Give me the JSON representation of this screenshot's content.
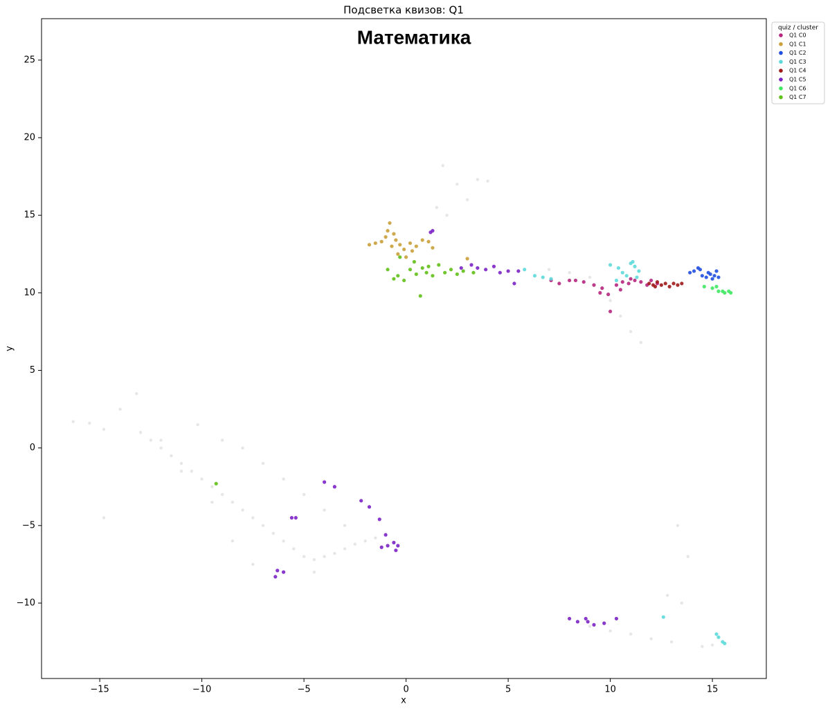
{
  "chart_data": {
    "type": "scatter",
    "title": "Подсветка квизов: Q1",
    "annotation": "Математика",
    "x_label": "x",
    "y_label": "y",
    "legend_title": "quiz / cluster",
    "legend_position": "upper right outside",
    "xlim": [
      -17.85,
      17.64
    ],
    "ylim": [
      -14.86,
      27.67
    ],
    "xticks": [
      {
        "value": -15,
        "label": "−15"
      },
      {
        "value": -10,
        "label": "−10"
      },
      {
        "value": -5,
        "label": "−5"
      },
      0,
      5,
      10,
      15
    ],
    "yticks": [
      {
        "value": -10,
        "label": "−10"
      },
      {
        "value": -5,
        "label": "−5"
      },
      0,
      5,
      10,
      15,
      20,
      25
    ],
    "series": [
      {
        "color": "#dcdcdc",
        "x": [
          -16.3,
          -15.5,
          -14.8,
          -14.0,
          -13.2,
          -13.0,
          -12.5,
          -12.0,
          -11.5,
          -11.0,
          -10.5,
          -10.0,
          -9.5,
          -9.0,
          -8.5,
          -8.0,
          -7.5,
          -7.0,
          -6.5,
          -6.0,
          -5.5,
          -5.0,
          -4.5,
          -4.0,
          -3.5,
          -3.0,
          -2.5,
          -2.0,
          -1.5,
          -10.2,
          -9.0,
          -8.0,
          -7.0,
          -6.0,
          -5.0,
          -4.0,
          -3.0,
          -11.0,
          -9.5,
          -8.5,
          -7.5,
          -12.0,
          -14.8,
          -4.5,
          1.8,
          2.5,
          3.0,
          3.5,
          4.0,
          2.0,
          1.5,
          7.0,
          8.0,
          9.0,
          10.0,
          10.5,
          11.0,
          11.5,
          9.0,
          10.0,
          11.0,
          12.0,
          13.0,
          13.5,
          13.8,
          13.3,
          12.8,
          14.5,
          15.0
        ],
        "y": [
          1.7,
          1.6,
          1.2,
          2.5,
          3.5,
          1.0,
          0.5,
          0.0,
          -0.5,
          -1.0,
          -1.5,
          -2.0,
          -2.5,
          -3.0,
          -3.5,
          -4.0,
          -4.5,
          -5.0,
          -5.5,
          -6.0,
          -6.5,
          -7.0,
          -7.2,
          -7.0,
          -6.8,
          -6.5,
          -6.2,
          -6.0,
          -5.8,
          1.5,
          0.5,
          0.0,
          -1.0,
          -2.0,
          -3.0,
          -4.0,
          -5.0,
          -1.5,
          -3.5,
          -6.0,
          -7.5,
          0.5,
          -4.5,
          -8.0,
          18.2,
          17.0,
          16.0,
          17.3,
          17.2,
          15.0,
          15.5,
          11.5,
          11.3,
          11.0,
          9.5,
          8.5,
          7.5,
          6.8,
          -11.5,
          -11.8,
          -12.0,
          -12.3,
          -12.5,
          -10.0,
          -7.0,
          -5.0,
          -9.5,
          -12.8,
          -12.7
        ]
      },
      {
        "name": "Q1 C0",
        "color": "#b5267e",
        "x": [
          8.3,
          8.7,
          9.2,
          9.6,
          9.9,
          10.0,
          10.3,
          10.6,
          10.9,
          11.2,
          11.5,
          11.8,
          12.0,
          12.3,
          8.0,
          9.5,
          10.5,
          11.0,
          7.1,
          7.5
        ],
        "y": [
          10.8,
          10.7,
          10.5,
          10.3,
          9.9,
          8.8,
          10.5,
          10.7,
          10.6,
          10.8,
          10.7,
          10.5,
          10.8,
          10.6,
          10.8,
          10.0,
          10.2,
          10.9,
          10.8,
          10.6
        ]
      },
      {
        "name": "Q1 C1",
        "color": "#c9a03a",
        "x": [
          -1.8,
          -1.5,
          -1.2,
          -1.0,
          -0.9,
          -0.8,
          -0.6,
          -0.5,
          -0.3,
          -0.1,
          0.2,
          0.5,
          0.8,
          1.1,
          1.3,
          -0.4,
          0.0,
          3.0,
          -0.7,
          0.3
        ],
        "y": [
          13.1,
          13.2,
          13.3,
          13.6,
          14.0,
          14.5,
          13.8,
          13.4,
          13.1,
          12.8,
          13.2,
          13.0,
          13.4,
          13.3,
          12.9,
          12.5,
          12.3,
          12.2,
          13.0,
          12.7
        ]
      },
      {
        "name": "Q1 C2",
        "color": "#1f4fe0",
        "x": [
          13.9,
          14.1,
          14.3,
          14.5,
          14.7,
          14.9,
          15.1,
          15.2,
          15.3,
          14.4,
          14.8,
          15.0
        ],
        "y": [
          11.3,
          11.4,
          11.6,
          11.1,
          11.0,
          11.2,
          11.1,
          11.4,
          11.0,
          11.5,
          11.3,
          10.9
        ]
      },
      {
        "name": "Q1 C3",
        "color": "#5dd9d9",
        "x": [
          5.8,
          6.3,
          6.7,
          7.1,
          10.0,
          10.4,
          10.6,
          10.8,
          11.0,
          11.2,
          11.4,
          11.1,
          10.3,
          11.3,
          12.6,
          15.3,
          15.5,
          15.6,
          15.2
        ],
        "y": [
          11.5,
          11.1,
          11.0,
          10.9,
          11.8,
          11.6,
          11.3,
          11.1,
          11.9,
          11.7,
          11.4,
          12.0,
          10.8,
          11.0,
          -10.9,
          -12.2,
          -12.5,
          -12.6,
          -12.0
        ]
      },
      {
        "name": "Q1 C4",
        "color": "#a01a1a",
        "x": [
          11.9,
          12.1,
          12.3,
          12.5,
          12.7,
          12.9,
          13.1,
          13.3,
          13.5,
          12.2
        ],
        "y": [
          10.6,
          10.5,
          10.7,
          10.5,
          10.6,
          10.4,
          10.6,
          10.5,
          10.6,
          10.4
        ]
      },
      {
        "name": "Q1 C5",
        "color": "#7b22c4",
        "x": [
          1.2,
          1.3,
          2.7,
          3.2,
          3.5,
          3.9,
          4.3,
          4.6,
          5.0,
          5.5,
          5.3,
          -4.0,
          -3.5,
          -2.2,
          -1.8,
          -1.3,
          -1.0,
          -0.9,
          -0.6,
          -0.5,
          -0.4,
          -1.2,
          -5.6,
          -5.4,
          -6.3,
          -6.0,
          -6.4,
          8.0,
          8.4,
          8.9,
          9.2,
          9.7,
          10.3,
          8.8
        ],
        "y": [
          13.9,
          14.0,
          11.6,
          11.8,
          11.6,
          11.5,
          11.7,
          11.3,
          11.4,
          11.4,
          10.6,
          -2.2,
          -2.5,
          -3.4,
          -3.8,
          -4.6,
          -5.6,
          -6.3,
          -6.1,
          -6.6,
          -6.3,
          -6.4,
          -4.5,
          -4.5,
          -7.9,
          -8.0,
          -8.3,
          -11.0,
          -11.2,
          -11.2,
          -11.4,
          -11.3,
          -11.0,
          -11.0
        ]
      },
      {
        "name": "Q1 C6",
        "color": "#3fe860",
        "x": [
          15.0,
          15.3,
          15.6,
          15.9,
          15.2,
          15.5,
          15.8,
          14.6
        ],
        "y": [
          10.3,
          10.1,
          10.0,
          10.0,
          10.4,
          10.1,
          10.1,
          10.4
        ]
      },
      {
        "name": "Q1 C7",
        "color": "#62c01a",
        "x": [
          -0.9,
          -0.6,
          -0.4,
          -0.1,
          0.2,
          0.5,
          0.8,
          1.0,
          1.3,
          1.6,
          1.9,
          2.2,
          2.5,
          0.4,
          -0.3,
          0.7,
          -9.3,
          3.3,
          1.1,
          2.8
        ],
        "y": [
          11.5,
          10.9,
          11.1,
          10.8,
          11.5,
          11.2,
          11.6,
          11.3,
          11.1,
          11.8,
          11.3,
          11.5,
          11.2,
          12.0,
          12.3,
          9.8,
          -2.3,
          11.3,
          11.7,
          11.4
        ]
      }
    ]
  }
}
